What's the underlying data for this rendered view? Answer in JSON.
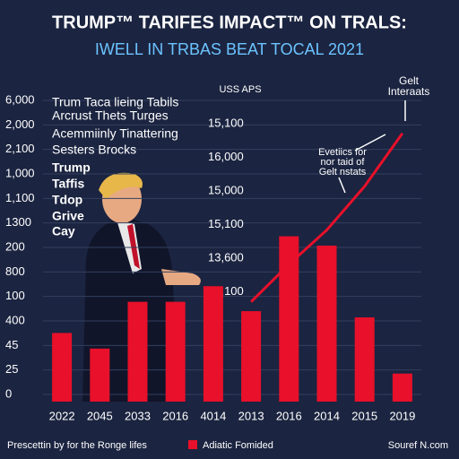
{
  "chart_data": {
    "type": "bar",
    "title": "TRUMP™ TARIFES IMPACT™ ON TRALS:",
    "subtitle": "IWELL IN TRBAS BEAT TOCAL 2021",
    "left_axis_labels": [
      "6,000",
      "2,000",
      "2,100",
      "1,000",
      "1,100",
      "1300",
      "200",
      "800",
      "100",
      "400",
      "45",
      "25",
      "0"
    ],
    "right_axis_title": "USS APS",
    "right_axis_labels": [
      "15,100",
      "16,000",
      "15,000",
      "15,100",
      "13,600",
      "16,100"
    ],
    "overlay_text": [
      "Trum Taca lieing Tabils",
      "Arcrust Thets Turges",
      "Acemmiinly Tinattering",
      "Sesters Brocks",
      "Trump",
      "Taffis",
      "Tdop",
      "Grive",
      "Cay"
    ],
    "categories": [
      "2022",
      "2045",
      "2033",
      "2016",
      "4014",
      "2013",
      "2016",
      "2014",
      "2015",
      "2019"
    ],
    "ylim": [
      0,
      100
    ],
    "series": [
      {
        "name": "Adiatic Fomided",
        "color": "#e8102a",
        "values": [
          22,
          17,
          32,
          32,
          37,
          29,
          53,
          50,
          27,
          9
        ]
      },
      {
        "color": "#e8102a",
        "values": [
          null,
          null,
          null,
          null,
          null,
          32,
          44,
          55,
          69,
          86
        ]
      }
    ],
    "annotations": [
      {
        "text": [
          "Gelt",
          "Interaats"
        ]
      },
      {
        "text": [
          "Evetiics for",
          "nor taid of",
          "Gelt nstats"
        ]
      }
    ],
    "footer_left": "Prescettin by for the Ronge lifes",
    "footer_right": "Souref N.com"
  }
}
